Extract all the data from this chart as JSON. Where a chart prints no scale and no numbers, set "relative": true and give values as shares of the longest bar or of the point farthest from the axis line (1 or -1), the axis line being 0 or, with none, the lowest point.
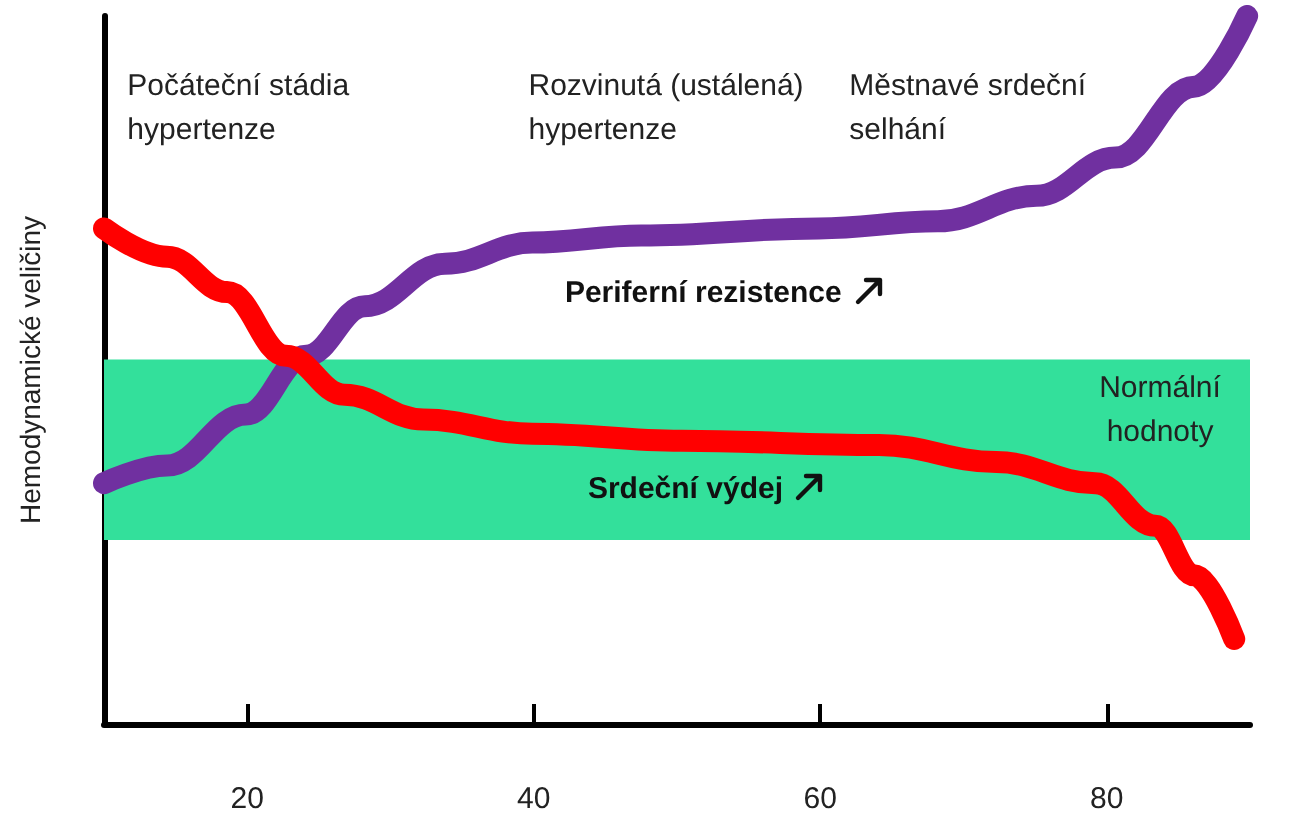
{
  "chart_data": {
    "type": "line",
    "relative": true,
    "ylabel": "Hemodynamické veličiny",
    "xlim": [
      10,
      90
    ],
    "xticks": [
      20,
      40,
      60,
      80
    ],
    "grid": false,
    "legend": false,
    "marker": "none",
    "line_style": "solid",
    "annotations": [
      "Počáteční stádia\nhypertenze",
      "Rozvinutá (ustálená)\nhypertenze",
      "Městnavé srdeční\nselhání"
    ],
    "bands": [
      {
        "axis": "y",
        "from": 0.26,
        "to": 0.515,
        "label": "Normální\nhodnoty",
        "color": "#33e09b"
      }
    ],
    "series": [
      {
        "name": "Periferní rezistence",
        "color": "#7030a0",
        "x": [
          10,
          14.4,
          19.9,
          24.1,
          28.2,
          33.8,
          39.9,
          47.5,
          59.9,
          68.2,
          75.1,
          80.6,
          86.1,
          89.8
        ],
        "values": [
          0.34,
          0.365,
          0.437,
          0.52,
          0.59,
          0.65,
          0.68,
          0.69,
          0.7,
          0.71,
          0.746,
          0.8,
          0.9,
          1
        ]
      },
      {
        "name": "Srdeční výdej",
        "color": "#ff0000",
        "x": [
          10,
          14.4,
          18.6,
          22.7,
          26.8,
          32.3,
          39.9,
          50.3,
          64.1,
          72.3,
          79.2,
          83.4,
          86.1,
          88.9
        ],
        "values": [
          0.7,
          0.66,
          0.61,
          0.52,
          0.465,
          0.43,
          0.41,
          0.4,
          0.394,
          0.37,
          0.34,
          0.28,
          0.21,
          0.12
        ]
      }
    ]
  }
}
